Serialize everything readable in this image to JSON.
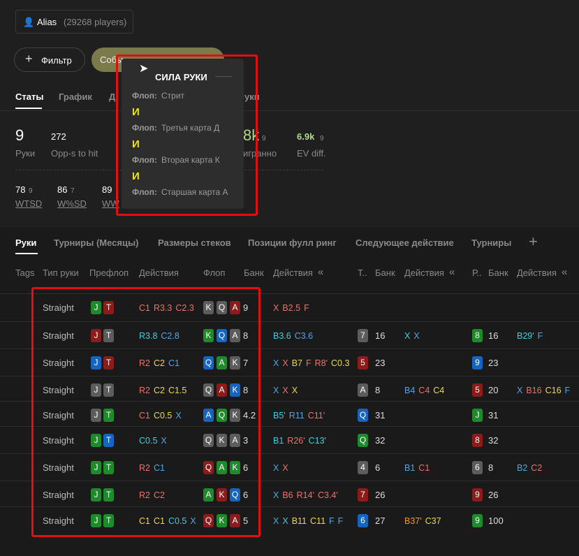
{
  "header": {
    "alias": "Alias",
    "players": "(29268 players)"
  },
  "filter_button": "Фильтр",
  "event_chip": "Собы",
  "stat_tabs": [
    "Статы",
    "График",
    "Д",
    "уки"
  ],
  "stats": [
    {
      "value": "9",
      "label": "Руки"
    },
    {
      "value": "272",
      "label": "Opp-s to hit"
    },
    {
      "value": "8k",
      "sub": "9",
      "label": "игранно"
    },
    {
      "value": "6.9k",
      "sub": "9",
      "label": "EV diff."
    }
  ],
  "stats2": [
    {
      "value": "78",
      "sub": "9",
      "label": "WTSD"
    },
    {
      "value": "86",
      "sub": "7",
      "label": "W%SD"
    },
    {
      "value": "89",
      "label": "WW"
    }
  ],
  "tooltip": {
    "title": "СИЛА РУКИ",
    "joiner": "И",
    "items": [
      {
        "street": "Флоп:",
        "text": "Стрит"
      },
      {
        "street": "Флоп:",
        "text": "Третья карта Д"
      },
      {
        "street": "Флоп:",
        "text": "Вторая карта К"
      },
      {
        "street": "Флоп:",
        "text": "Старшая карта А"
      }
    ]
  },
  "table_tabs": [
    "Руки",
    "Турниры (Месяцы)",
    "Размеры стеков",
    "Позиции фулл ринг",
    "Следующее действие",
    "Турниры"
  ],
  "columns": [
    {
      "label": "Tags"
    },
    {
      "label": "Тип руки"
    },
    {
      "label": "Префлоп"
    },
    {
      "label": "Действия"
    },
    {
      "label": "Флоп"
    },
    {
      "label": "Банк"
    },
    {
      "label": "Действия",
      "collapse": true
    },
    {
      "label": "Т.."
    },
    {
      "label": "Банк"
    },
    {
      "label": "Действия",
      "collapse": true
    },
    {
      "label": "Р.."
    },
    {
      "label": "Банк"
    },
    {
      "label": "Действия",
      "collapse": true
    }
  ],
  "rows": [
    {
      "type": "Straight",
      "pre": [
        {
          "rank": "J",
          "suit": "c"
        },
        {
          "rank": "T",
          "suit": "h"
        }
      ],
      "pa": [
        {
          "text": "C1",
          "color": "r"
        },
        {
          "text": "R3.3",
          "color": "r"
        },
        {
          "text": "C2.3",
          "color": "r"
        }
      ],
      "flop": [
        {
          "rank": "K",
          "suit": "s"
        },
        {
          "rank": "Q",
          "suit": "s"
        },
        {
          "rank": "A",
          "suit": "h"
        }
      ],
      "fbank": "9",
      "fa": [
        {
          "text": "X",
          "color": "r"
        },
        {
          "text": "B2.5",
          "color": "r"
        },
        {
          "text": "F",
          "color": "r"
        }
      ]
    },
    {
      "type": "Straight",
      "pre": [
        {
          "rank": "J",
          "suit": "h"
        },
        {
          "rank": "T",
          "suit": "s"
        }
      ],
      "pa": [
        {
          "text": "R3.8",
          "color": "c"
        },
        {
          "text": "C2.8",
          "color": "b"
        }
      ],
      "flop": [
        {
          "rank": "K",
          "suit": "c"
        },
        {
          "rank": "Q",
          "suit": "d"
        },
        {
          "rank": "A",
          "suit": "s"
        }
      ],
      "fbank": "8",
      "fa": [
        {
          "text": "B3.6",
          "color": "c"
        },
        {
          "text": "C3.6",
          "color": "b"
        }
      ],
      "turn": {
        "rank": "7",
        "suit": "s"
      },
      "tbank": "16",
      "ta": [
        {
          "text": "X",
          "color": "c"
        },
        {
          "text": "X",
          "color": "b"
        }
      ],
      "river": {
        "rank": "8",
        "suit": "c"
      },
      "rbank": "16",
      "ra": [
        {
          "text": "B29'",
          "color": "c"
        },
        {
          "text": "F",
          "color": "b"
        }
      ]
    },
    {
      "type": "Straight",
      "pre": [
        {
          "rank": "J",
          "suit": "d"
        },
        {
          "rank": "T",
          "suit": "h"
        }
      ],
      "pa": [
        {
          "text": "R2",
          "color": "r"
        },
        {
          "text": "C2",
          "color": "y"
        },
        {
          "text": "C1",
          "color": "b"
        }
      ],
      "flop": [
        {
          "rank": "Q",
          "suit": "d"
        },
        {
          "rank": "A",
          "suit": "c"
        },
        {
          "rank": "K",
          "suit": "s"
        }
      ],
      "fbank": "7",
      "fa": [
        {
          "text": "X",
          "color": "b"
        },
        {
          "text": "X",
          "color": "r"
        },
        {
          "text": "B7",
          "color": "y"
        },
        {
          "text": "F",
          "color": "r"
        },
        {
          "text": "R8'",
          "color": "r"
        },
        {
          "text": "C0.3",
          "color": "y"
        }
      ],
      "turn": {
        "rank": "5",
        "suit": "h"
      },
      "tbank": "23",
      "river": {
        "rank": "9",
        "suit": "d"
      },
      "rbank": "23"
    },
    {
      "type": "Straight",
      "pre": [
        {
          "rank": "J",
          "suit": "s"
        },
        {
          "rank": "T",
          "suit": "s"
        }
      ],
      "pa": [
        {
          "text": "R2",
          "color": "r"
        },
        {
          "text": "C2",
          "color": "y"
        },
        {
          "text": "C1.5",
          "color": "y"
        }
      ],
      "flop": [
        {
          "rank": "Q",
          "suit": "s"
        },
        {
          "rank": "A",
          "suit": "h"
        },
        {
          "rank": "K",
          "suit": "d"
        }
      ],
      "fbank": "8",
      "fa": [
        {
          "text": "X",
          "color": "b"
        },
        {
          "text": "X",
          "color": "r"
        },
        {
          "text": "X",
          "color": "y"
        }
      ],
      "turn": {
        "rank": "A",
        "suit": "s"
      },
      "tbank": "8",
      "ta": [
        {
          "text": "B4",
          "color": "b"
        },
        {
          "text": "C4",
          "color": "r"
        },
        {
          "text": "C4",
          "color": "y"
        }
      ],
      "river": {
        "rank": "5",
        "suit": "h"
      },
      "rbank": "20",
      "ra": [
        {
          "text": "X",
          "color": "b"
        },
        {
          "text": "B16",
          "color": "r"
        },
        {
          "text": "C16",
          "color": "y"
        },
        {
          "text": "F",
          "color": "b"
        }
      ]
    },
    {
      "type": "Straight",
      "pre": [
        {
          "rank": "J",
          "suit": "s"
        },
        {
          "rank": "T",
          "suit": "c"
        }
      ],
      "pa": [
        {
          "text": "C1",
          "color": "r"
        },
        {
          "text": "C0.5",
          "color": "y"
        },
        {
          "text": "X",
          "color": "b"
        }
      ],
      "flop": [
        {
          "rank": "A",
          "suit": "d"
        },
        {
          "rank": "Q",
          "suit": "c"
        },
        {
          "rank": "K",
          "suit": "s"
        }
      ],
      "fbank": "4.2",
      "fa": [
        {
          "text": "B5'",
          "color": "c"
        },
        {
          "text": "R11",
          "color": "b"
        },
        {
          "text": "C11'",
          "color": "r"
        }
      ],
      "turn": {
        "rank": "Q",
        "suit": "d"
      },
      "tbank": "31",
      "river": {
        "rank": "J",
        "suit": "c"
      },
      "rbank": "31"
    },
    {
      "type": "Straight",
      "pre": [
        {
          "rank": "J",
          "suit": "c"
        },
        {
          "rank": "T",
          "suit": "d"
        }
      ],
      "pa": [
        {
          "text": "C0.5",
          "color": "c"
        },
        {
          "text": "X",
          "color": "b"
        }
      ],
      "flop": [
        {
          "rank": "Q",
          "suit": "s"
        },
        {
          "rank": "K",
          "suit": "s"
        },
        {
          "rank": "A",
          "suit": "s"
        }
      ],
      "fbank": "3",
      "fa": [
        {
          "text": "B1",
          "color": "c"
        },
        {
          "text": "R26'",
          "color": "r"
        },
        {
          "text": "C13'",
          "color": "c"
        }
      ],
      "turn": {
        "rank": "Q",
        "suit": "c"
      },
      "tbank": "32",
      "river": {
        "rank": "8",
        "suit": "h"
      },
      "rbank": "32"
    },
    {
      "type": "Straight",
      "pre": [
        {
          "rank": "J",
          "suit": "c"
        },
        {
          "rank": "T",
          "suit": "c"
        }
      ],
      "pa": [
        {
          "text": "R2",
          "color": "r"
        },
        {
          "text": "C1",
          "color": "b"
        }
      ],
      "flop": [
        {
          "rank": "Q",
          "suit": "h"
        },
        {
          "rank": "A",
          "suit": "c"
        },
        {
          "rank": "K",
          "suit": "c"
        }
      ],
      "fbank": "6",
      "fa": [
        {
          "text": "X",
          "color": "b"
        },
        {
          "text": "X",
          "color": "r"
        }
      ],
      "turn": {
        "rank": "4",
        "suit": "s"
      },
      "tbank": "6",
      "ta": [
        {
          "text": "B1",
          "color": "b"
        },
        {
          "text": "C1",
          "color": "r"
        }
      ],
      "river": {
        "rank": "6",
        "suit": "s"
      },
      "rbank": "8",
      "ra": [
        {
          "text": "B2",
          "color": "b"
        },
        {
          "text": "C2",
          "color": "r"
        }
      ]
    },
    {
      "type": "Straight",
      "pre": [
        {
          "rank": "J",
          "suit": "c"
        },
        {
          "rank": "T",
          "suit": "c"
        }
      ],
      "pa": [
        {
          "text": "R2",
          "color": "r"
        },
        {
          "text": "C2",
          "color": "r"
        }
      ],
      "flop": [
        {
          "rank": "A",
          "suit": "c"
        },
        {
          "rank": "K",
          "suit": "h"
        },
        {
          "rank": "Q",
          "suit": "d"
        }
      ],
      "fbank": "6",
      "fa": [
        {
          "text": "X",
          "color": "b"
        },
        {
          "text": "B6",
          "color": "r"
        },
        {
          "text": "R14'",
          "color": "r"
        },
        {
          "text": "C3.4'",
          "color": "r"
        }
      ],
      "turn": {
        "rank": "7",
        "suit": "h"
      },
      "tbank": "26",
      "river": {
        "rank": "9",
        "suit": "h"
      },
      "rbank": "26"
    },
    {
      "type": "Straight",
      "pre": [
        {
          "rank": "J",
          "suit": "c"
        },
        {
          "rank": "T",
          "suit": "c"
        }
      ],
      "pa": [
        {
          "text": "C1",
          "color": "y"
        },
        {
          "text": "C1",
          "color": "y"
        },
        {
          "text": "C0.5",
          "color": "c"
        },
        {
          "text": "X",
          "color": "b"
        }
      ],
      "flop": [
        {
          "rank": "Q",
          "suit": "h"
        },
        {
          "rank": "K",
          "suit": "c"
        },
        {
          "rank": "A",
          "suit": "h"
        }
      ],
      "fbank": "5",
      "fa": [
        {
          "text": "X",
          "color": "b"
        },
        {
          "text": "X",
          "color": "c"
        },
        {
          "text": "B11",
          "color": "y"
        },
        {
          "text": "C11",
          "color": "y"
        },
        {
          "text": "F",
          "color": "b"
        },
        {
          "text": "F",
          "color": "b"
        }
      ],
      "turn": {
        "rank": "6",
        "suit": "d"
      },
      "tbank": "27",
      "ta": [
        {
          "text": "B37'",
          "color": "o"
        },
        {
          "text": "C37",
          "color": "y"
        }
      ],
      "river": {
        "rank": "9",
        "suit": "c"
      },
      "rbank": "100"
    }
  ]
}
